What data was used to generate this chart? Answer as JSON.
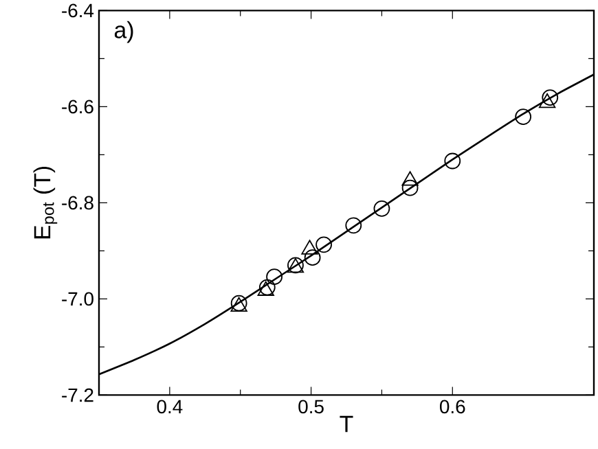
{
  "chart_data": {
    "type": "scatter",
    "xlabel": "T",
    "ylabel": "E$_{pot}$ (T)",
    "annotations": [
      "a)"
    ],
    "xlim": [
      0.35,
      0.7
    ],
    "ylim": [
      -7.2,
      -6.4
    ],
    "xticks": [
      0.4,
      0.5,
      0.6
    ],
    "yticks": [
      {
        "value": -7.2,
        "label": "-7.2"
      },
      {
        "value": -7.0,
        "label": "-7.0"
      },
      -6.8,
      -6.6,
      -6.4
    ],
    "grid": false,
    "series": [
      {
        "type": "line",
        "marker": "none",
        "line_style": "solid",
        "color": "#000000",
        "x": [
          0.35,
          0.375,
          0.4,
          0.425,
          0.45,
          0.475,
          0.5,
          0.525,
          0.55,
          0.575,
          0.6,
          0.625,
          0.65,
          0.675,
          0.7
        ],
        "values": [
          -7.157,
          -7.127,
          -7.093,
          -7.052,
          -7.006,
          -6.958,
          -6.91,
          -6.86,
          -6.81,
          -6.76,
          -6.71,
          -6.662,
          -6.615,
          -6.572,
          -6.533
        ]
      },
      {
        "marker": "circle",
        "color": "#000000",
        "x": [
          0.449,
          0.469,
          0.474,
          0.489,
          0.501,
          0.509,
          0.53,
          0.55,
          0.57,
          0.6,
          0.65,
          0.669
        ],
        "values": [
          -7.009,
          -6.976,
          -6.954,
          -6.93,
          -6.914,
          -6.887,
          -6.847,
          -6.812,
          -6.769,
          -6.713,
          -6.621,
          -6.581
        ]
      },
      {
        "marker": "triangle",
        "color": "#000000",
        "x": [
          0.449,
          0.468,
          0.489,
          0.499,
          0.57,
          0.667
        ],
        "values": [
          -7.016,
          -6.983,
          -6.935,
          -6.897,
          -6.754,
          -6.592
        ]
      }
    ]
  }
}
